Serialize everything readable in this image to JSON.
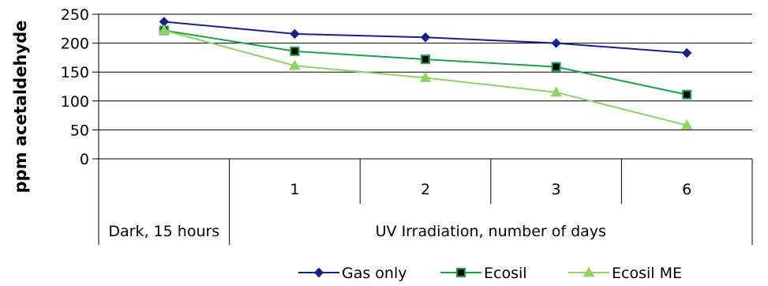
{
  "chart_data": {
    "type": "line",
    "ylabel": "ppm acetaldehyde",
    "ylim": [
      0,
      250
    ],
    "ytick_step": 50,
    "yticks": [
      "0",
      "50",
      "100",
      "150",
      "200",
      "250"
    ],
    "categories": [
      "",
      "1",
      "2",
      "3",
      "6"
    ],
    "group_labels": [
      "Dark, 15 hours",
      "UV Irradiation, number of days"
    ],
    "grid": true,
    "legend_position": "bottom",
    "series": [
      {
        "name": "Gas only",
        "color": "#1a1f8a",
        "marker": "diamond",
        "values": [
          237,
          216,
          210,
          200,
          183
        ]
      },
      {
        "name": "Ecosil",
        "color": "#1aa34a",
        "marker": "square",
        "values": [
          222,
          186,
          172,
          159,
          111
        ]
      },
      {
        "name": "Ecosil ME",
        "color": "#8ed466",
        "marker": "triangle",
        "values": [
          222,
          161,
          140,
          115,
          58
        ]
      }
    ]
  }
}
